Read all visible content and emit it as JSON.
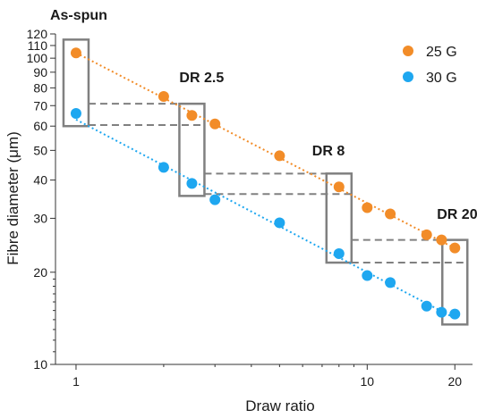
{
  "chart_data": {
    "type": "scatter",
    "xlabel": "Draw ratio",
    "ylabel": "Fibre diameter (μm)",
    "x_scale": "log",
    "y_scale": "log",
    "xlim": [
      0.85,
      23
    ],
    "ylim": [
      10,
      120
    ],
    "x_ticks": [
      1,
      10,
      20
    ],
    "y_ticks": [
      10,
      20,
      30,
      40,
      50,
      60,
      70,
      80,
      90,
      100,
      110,
      120
    ],
    "grid": false,
    "legend_position": "top-right",
    "series": [
      {
        "name": "25 G",
        "color": "#F28C28",
        "x": [
          1,
          2.0,
          2.5,
          3.0,
          5.0,
          8.0,
          10.0,
          12.0,
          16.0,
          18.0,
          20.0
        ],
        "y": [
          104,
          75,
          65,
          61,
          48,
          38,
          32.5,
          31,
          26.5,
          25.5,
          24
        ]
      },
      {
        "name": "30 G",
        "color": "#1EA7F0",
        "x": [
          1,
          2.0,
          2.5,
          3.0,
          5.0,
          8.0,
          10.0,
          12.0,
          16.0,
          18.0,
          20.0
        ],
        "y": [
          66,
          44,
          39,
          34.5,
          29,
          23,
          19.5,
          18.5,
          15.5,
          14.8,
          14.6
        ]
      }
    ],
    "annotations": [
      {
        "text": "As-spun",
        "x": 1,
        "box_y": [
          60,
          115
        ],
        "dashed_levels": [
          71,
          60.5
        ],
        "dash_to_x": 2.5
      },
      {
        "text": "DR 2.5",
        "x": 2.5,
        "box_y": [
          35.5,
          71
        ],
        "dashed_levels": [
          42,
          36
        ],
        "dash_to_x": 8
      },
      {
        "text": "DR 8",
        "x": 8,
        "box_y": [
          21.5,
          42
        ],
        "dashed_levels": [
          25.5,
          21.5
        ],
        "dash_to_x": 20
      },
      {
        "text": "DR 20",
        "x": 20,
        "box_y": [
          13.5,
          25.5
        ],
        "dashed_levels": [],
        "dash_to_x": 20
      }
    ],
    "box_color": "#808080",
    "dash_color": "#808080"
  }
}
